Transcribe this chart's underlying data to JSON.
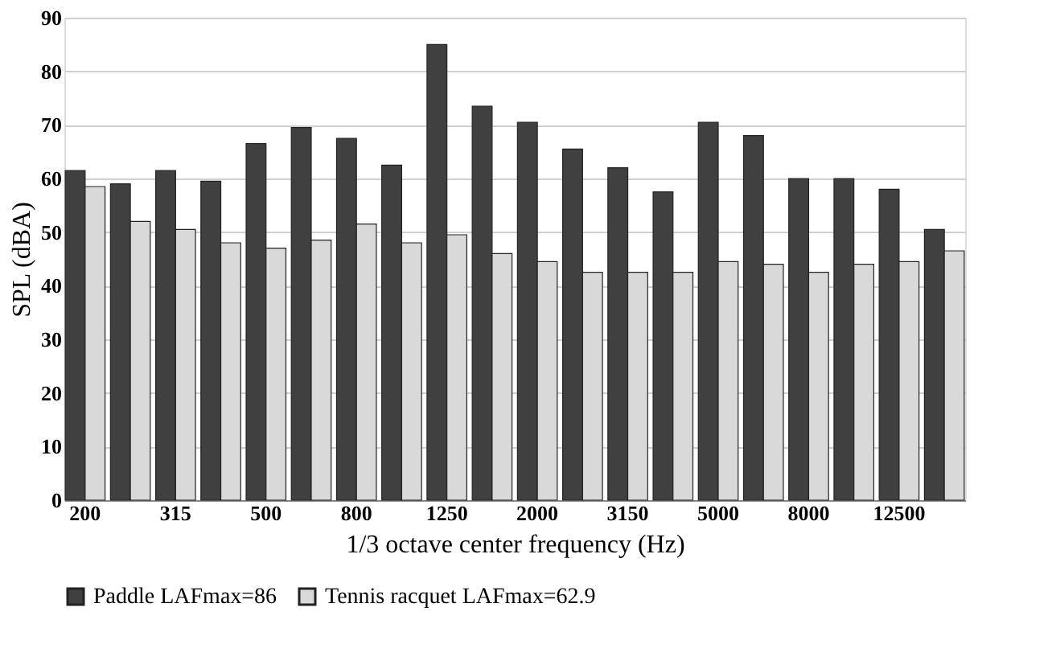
{
  "chart_data": {
    "type": "bar",
    "xlabel": "1/3 octave center frequency (Hz)",
    "ylabel": "SPL (dBA)",
    "categories": [
      "200",
      null,
      "315",
      null,
      "500",
      null,
      "800",
      null,
      "1250",
      null,
      "2000",
      null,
      "3150",
      null,
      "5000",
      null,
      "8000",
      null,
      "12500",
      null
    ],
    "series": [
      {
        "name": "Paddle LAFmax=86",
        "color": "#404040",
        "values": [
          61.5,
          59,
          61.5,
          59.5,
          66.5,
          69.5,
          67.5,
          62.5,
          85,
          73.5,
          70.5,
          65.5,
          62,
          57.5,
          70.5,
          68,
          60,
          60,
          58,
          50.5
        ]
      },
      {
        "name": "Tennis racquet LAFmax=62.9",
        "color": "#d9d9d9",
        "values": [
          58.5,
          52,
          50.5,
          48,
          47,
          48.5,
          51.5,
          48,
          49.5,
          46,
          44.5,
          42.5,
          42.5,
          42.5,
          44.5,
          44,
          42.5,
          44,
          44.5,
          46.5
        ]
      }
    ],
    "ylim": [
      0,
      90
    ],
    "yticks": [
      0,
      10,
      20,
      30,
      40,
      50,
      60,
      70,
      80,
      90
    ],
    "grid": "y",
    "legend": "bottom"
  }
}
